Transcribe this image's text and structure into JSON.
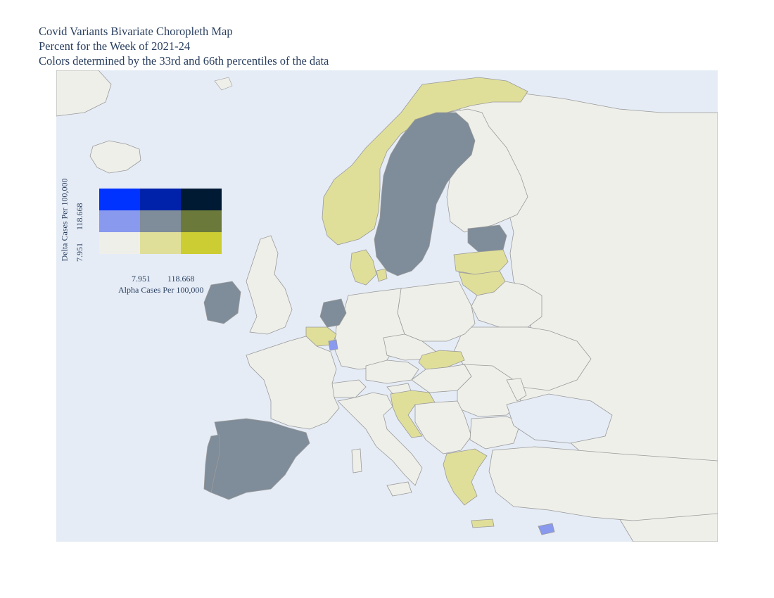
{
  "title": {
    "line1": "Covid Variants Bivariate Choropleth Map",
    "line2": "Percent for the Week of 2021-24",
    "line3": "Colors determined by the 33rd and 66th percentiles of the data"
  },
  "legend": {
    "x_label": "Alpha Cases Per 100,000",
    "y_label": "Delta Cases Per 100,000",
    "x_ticks": [
      "7.951",
      "118.668"
    ],
    "y_ticks": [
      "7.951",
      "118.668"
    ],
    "colors": [
      [
        "#0033ff",
        "#0022aa",
        "#001a33"
      ],
      [
        "#8899ee",
        "#7f8c99",
        "#6b7a3a"
      ],
      [
        "#efefea",
        "#e0df9a",
        "#cccc33"
      ]
    ]
  },
  "colors": {
    "ocean": "#e5ecf6",
    "default_land": "#efefea",
    "border": "#9a9a9a"
  },
  "countries": [
    {
      "name": "Sweden",
      "color": "#7f8c99"
    },
    {
      "name": "Norway",
      "color": "#e0df9a"
    },
    {
      "name": "Finland",
      "color": "#efefea"
    },
    {
      "name": "Estonia",
      "color": "#7f8c99"
    },
    {
      "name": "Latvia",
      "color": "#e0df9a"
    },
    {
      "name": "Lithuania",
      "color": "#e0df9a"
    },
    {
      "name": "Denmark",
      "color": "#e0df9a"
    },
    {
      "name": "Ireland",
      "color": "#7f8c99"
    },
    {
      "name": "Netherlands",
      "color": "#7f8c99"
    },
    {
      "name": "Belgium",
      "color": "#e0df9a"
    },
    {
      "name": "Luxembourg",
      "color": "#8899ee"
    },
    {
      "name": "Slovakia",
      "color": "#e0df9a"
    },
    {
      "name": "Croatia",
      "color": "#e0df9a"
    },
    {
      "name": "Greece",
      "color": "#e0df9a"
    },
    {
      "name": "Spain",
      "color": "#7f8c99"
    },
    {
      "name": "Portugal",
      "color": "#7f8c99"
    },
    {
      "name": "Cyprus",
      "color": "#8899ee"
    }
  ]
}
